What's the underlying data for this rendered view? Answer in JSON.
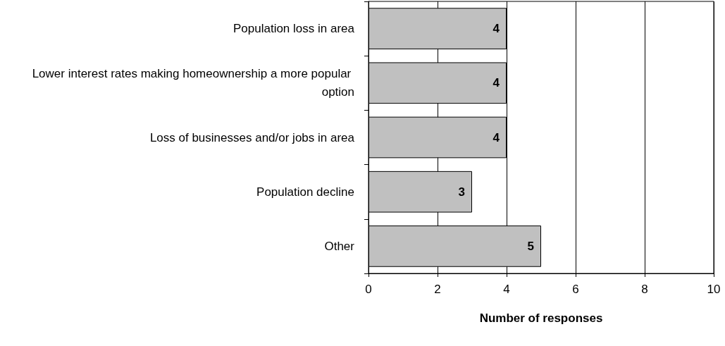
{
  "chart_data": {
    "type": "bar",
    "orientation": "horizontal",
    "xlabel": "Number of responses",
    "categories": [
      "Population loss in area",
      "Lower interest rates making homeownership a more popular option",
      "Loss of businesses and/or jobs in area",
      "Population decline",
      "Other"
    ],
    "values": [
      4,
      4,
      4,
      3,
      5
    ],
    "color": "#c0c0c0",
    "xlim": [
      0,
      10
    ],
    "xticks": [
      0,
      2,
      4,
      6,
      8,
      10
    ],
    "grid": "x",
    "data_labels": true
  }
}
